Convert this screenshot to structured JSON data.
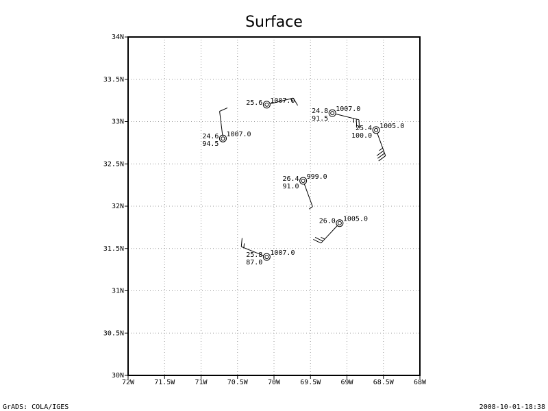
{
  "map": {
    "title": "Surface",
    "footer_left": "GrADS: COLA/IGES",
    "footer_right": "2008-10-01-18:38",
    "xlim": [
      -72,
      -68
    ],
    "ylim": [
      30,
      34
    ],
    "xticks": [
      {
        "value": -72,
        "label": "72W"
      },
      {
        "value": -71.5,
        "label": "71.5W"
      },
      {
        "value": -71,
        "label": "71W"
      },
      {
        "value": -70.5,
        "label": "70.5W"
      },
      {
        "value": -70,
        "label": "70W"
      },
      {
        "value": -69.5,
        "label": "69.5W"
      },
      {
        "value": -69,
        "label": "69W"
      },
      {
        "value": -68.5,
        "label": "68.5W"
      },
      {
        "value": -68,
        "label": "68W"
      }
    ],
    "yticks": [
      {
        "value": 30,
        "label": "30N"
      },
      {
        "value": 30.5,
        "label": "30.5N"
      },
      {
        "value": 31,
        "label": "31N"
      },
      {
        "value": 31.5,
        "label": "31.5N"
      },
      {
        "value": 32,
        "label": "32N"
      },
      {
        "value": 32.5,
        "label": "32.5N"
      },
      {
        "value": 33,
        "label": "33N"
      },
      {
        "value": 33.5,
        "label": "33.5N"
      },
      {
        "value": 34,
        "label": "34N"
      }
    ],
    "grid": true,
    "stations": [
      {
        "lon": -70.1,
        "lat": 33.2,
        "temp": "25.6",
        "pressure": "1007.0",
        "wind_dir": 76,
        "wind_speed": 15
      },
      {
        "lon": -69.2,
        "lat": 33.1,
        "temp": "24.8",
        "pressure": "1007.0",
        "humidity": "91.5",
        "wind_dir": 104,
        "wind_speed": 25
      },
      {
        "lon": -68.6,
        "lat": 32.9,
        "temp": "25.4",
        "pressure": "1005.0",
        "humidity": "100.0",
        "wind_dir": 160,
        "wind_speed": 35
      },
      {
        "lon": -70.7,
        "lat": 32.8,
        "temp": "24.6",
        "pressure": "1007.0",
        "humidity": "94.5",
        "wind_dir": 353,
        "wind_speed": 10
      },
      {
        "lon": -69.6,
        "lat": 32.3,
        "temp": "26.4",
        "pressure": "999.0",
        "humidity": "91.0",
        "wind_dir": 160,
        "wind_speed": 5
      },
      {
        "lon": -69.1,
        "lat": 31.8,
        "temp": "26.0",
        "pressure": "1005.0",
        "wind_dir": 223,
        "wind_speed": 25
      },
      {
        "lon": -70.1,
        "lat": 31.4,
        "temp": "25.8",
        "pressure": "1007.0",
        "humidity": "87.0",
        "wind_dir": 292,
        "wind_speed": 15
      }
    ]
  }
}
